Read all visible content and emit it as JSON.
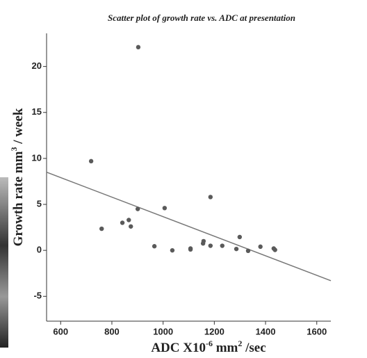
{
  "chart_data": {
    "type": "scatter",
    "title": "Scatter plot of growth rate vs. ADC at presentation",
    "x_label": [
      "ADC X10",
      "-6",
      " mm",
      "2",
      " /sec"
    ],
    "y_label": [
      "Growth rate mm",
      "3",
      " / week"
    ],
    "series": [
      {
        "color": "#5a5a5a",
        "x": [
          719,
          903,
          760,
          841,
          866,
          874,
          901,
          1006,
          966,
          1036,
          1107,
          1107,
          1156,
          1158,
          1185,
          1185,
          1231,
          1286,
          1299,
          1332,
          1380,
          1432,
          1437
        ],
        "values": [
          9.7,
          22.1,
          2.35,
          3.0,
          3.3,
          2.6,
          4.5,
          4.6,
          0.45,
          0.0,
          0.2,
          0.1,
          0.75,
          1.0,
          0.5,
          5.8,
          0.5,
          0.15,
          1.45,
          -0.05,
          0.4,
          0.2,
          0.05
        ]
      }
    ],
    "fit_line": {
      "color": "#777777",
      "x": [
        545,
        1655
      ],
      "y": [
        8.5,
        -3.3
      ]
    },
    "xlim": [
      545,
      1655
    ],
    "ylim": [
      -7.7,
      23.6
    ],
    "xticks": [
      600,
      800,
      1000,
      1200,
      1400,
      1600
    ],
    "yticks": [
      -5,
      0,
      5,
      10,
      15,
      20
    ]
  }
}
